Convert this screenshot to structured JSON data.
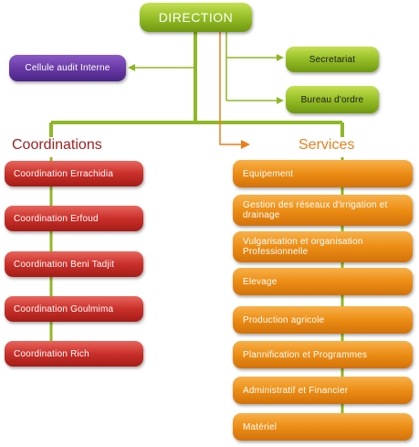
{
  "direction": {
    "label": "DIRECTION"
  },
  "audit": {
    "label": "Cellule audit Interne"
  },
  "secretariat": {
    "label": "Secretariat"
  },
  "bureau_ordre": {
    "label": "Bureau d'ordre"
  },
  "coordinations": {
    "heading": "Coordinations",
    "items": [
      {
        "label": "Coordination Errachidia"
      },
      {
        "label": "Coordination Erfoud"
      },
      {
        "label": "Coordination Beni Tadjit"
      },
      {
        "label": "Coordination Goulmima"
      },
      {
        "label": "Coordination  Rich"
      }
    ]
  },
  "services": {
    "heading": "Services",
    "items": [
      {
        "label": "Equipement"
      },
      {
        "label": "Gestion des réseaux d'irrigation et drainage"
      },
      {
        "label": "Vulgarisation et organisation Professionnelle"
      },
      {
        "label": "Elevage"
      },
      {
        "label": "Production agricole"
      },
      {
        "label": "Plannification et Programmes"
      },
      {
        "label": "Administratif et Financier"
      },
      {
        "label": "Matériel"
      }
    ]
  },
  "colors": {
    "green": "#8fb826",
    "purple": "#6a3ba6",
    "red": "#c9302a",
    "orange": "#ec8d14",
    "coord_heading": "#9e1f1f",
    "services_heading": "#e67e1e"
  }
}
